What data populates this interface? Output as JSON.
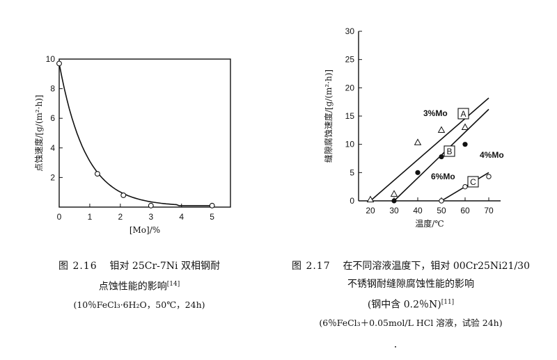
{
  "chart_data": [
    {
      "type": "line",
      "xlabel": "[Mo]/%",
      "ylabel": "点蚀速度/[g/(m²·h)]",
      "xlim": [
        0,
        5.6
      ],
      "ylim": [
        0,
        10
      ],
      "xticks": [
        "0",
        "1",
        "2",
        "3",
        "4",
        "5"
      ],
      "yticks": [
        "2",
        "4",
        "6",
        "8",
        "10"
      ],
      "series": [
        {
          "marker": "open-circle",
          "x": [
            0,
            1.25,
            2.1,
            3.0,
            5.0
          ],
          "y": [
            9.7,
            2.25,
            0.8,
            0.1,
            0.1
          ]
        }
      ]
    },
    {
      "type": "scatter",
      "xlabel": "温度/℃",
      "ylabel": "缝隙腐蚀速度/[g/(m²·h)]",
      "xlim": [
        15,
        75
      ],
      "ylim": [
        0,
        30
      ],
      "xticks": [
        "20",
        "30",
        "40",
        "50",
        "60",
        "70"
      ],
      "yticks": [
        "0",
        "5",
        "10",
        "15",
        "20",
        "25",
        "30"
      ],
      "series": [
        {
          "box": "A",
          "label": "3%Mo",
          "marker": "triangle",
          "x": [
            20,
            30,
            40,
            50,
            60
          ],
          "y": [
            0.2,
            1.2,
            10.3,
            12.5,
            13.0
          ],
          "fit": [
            [
              20,
              0
            ],
            [
              70,
              18.2
            ]
          ]
        },
        {
          "box": "B",
          "label": "4%Mo",
          "marker": "filled-circle",
          "x": [
            30,
            40,
            50,
            60
          ],
          "y": [
            0,
            5.0,
            7.8,
            10.0
          ],
          "fit": [
            [
              30,
              0
            ],
            [
              70,
              16.2
            ]
          ]
        },
        {
          "box": "C",
          "label": "6%Mo",
          "marker": "open-circle",
          "x": [
            50,
            60,
            70
          ],
          "y": [
            0,
            2.5,
            4.3
          ],
          "fit": [
            [
              50,
              0
            ],
            [
              70,
              5.0
            ]
          ]
        }
      ]
    }
  ],
  "captions": {
    "fig1": {
      "number": "图 2.16",
      "title_line1": "钼对 25Cr-7Ni 双相钢耐",
      "title_line2": "点蚀性能的影响",
      "ref": "[14]",
      "conditions": "(10％FeCl₃·6H₂O，50℃，24h)"
    },
    "fig2": {
      "number": "图 2.17",
      "title_line1": "在不同溶液温度下，钼对 00Cr25Ni21/30",
      "title_line2": "不锈钢耐缝隙腐蚀性能的影响",
      "note": "(钢中含 0.2％N)",
      "ref": "[11]",
      "conditions": "(6％FeCl₃＋0.05mol/L HCl 溶液，试验 24h)"
    }
  }
}
